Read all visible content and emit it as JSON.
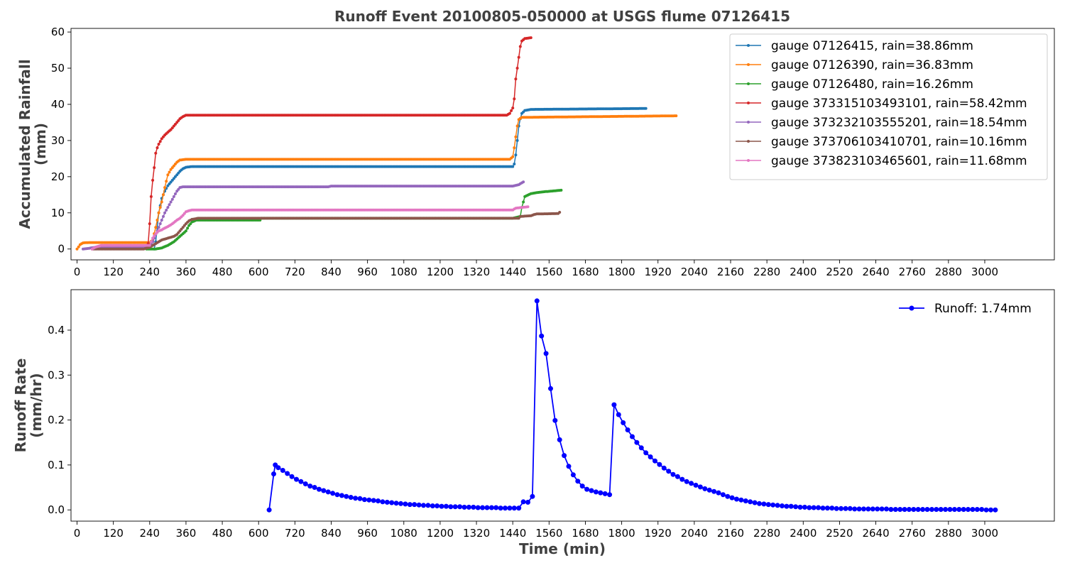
{
  "chart_data": [
    {
      "type": "line",
      "title": "Runoff Event 20100805-050000 at USGS flume 07126415",
      "ylabel": [
        "Accumulated Rainfall",
        "(mm)"
      ],
      "xlabel": "",
      "xlim": [
        -20,
        3230
      ],
      "ylim": [
        -3,
        61
      ],
      "xticks": [
        0,
        120,
        240,
        360,
        480,
        600,
        720,
        840,
        960,
        1080,
        1200,
        1320,
        1440,
        1560,
        1680,
        1800,
        1920,
        2040,
        2160,
        2280,
        2400,
        2520,
        2640,
        2760,
        2880,
        3000
      ],
      "yticks": [
        0,
        10,
        20,
        30,
        40,
        50,
        60
      ],
      "legend_position": "top-right",
      "series": [
        {
          "name": "gauge 07126415, rain=38.86mm",
          "color": "#1f77b4",
          "points": [
            [
              255,
              0
            ],
            [
              260,
              2
            ],
            [
              265,
              6
            ],
            [
              270,
              10
            ],
            [
              280,
              14
            ],
            [
              290,
              16
            ],
            [
              300,
              17.5
            ],
            [
              310,
              18.5
            ],
            [
              320,
              19.5
            ],
            [
              330,
              20.5
            ],
            [
              340,
              21.5
            ],
            [
              350,
              22.2
            ],
            [
              360,
              22.6
            ],
            [
              380,
              22.8
            ],
            [
              1440,
              22.8
            ],
            [
              1445,
              23.5
            ],
            [
              1450,
              26
            ],
            [
              1455,
              30
            ],
            [
              1460,
              34
            ],
            [
              1465,
              36
            ],
            [
              1470,
              37.5
            ],
            [
              1480,
              38.3
            ],
            [
              1500,
              38.6
            ],
            [
              1880,
              38.86
            ]
          ]
        },
        {
          "name": "gauge 07126390, rain=36.83mm",
          "color": "#ff7f0e",
          "points": [
            [
              0,
              0
            ],
            [
              10,
              1.2
            ],
            [
              20,
              1.7
            ],
            [
              40,
              1.8
            ],
            [
              240,
              1.8
            ],
            [
              250,
              2.5
            ],
            [
              260,
              6
            ],
            [
              270,
              10
            ],
            [
              280,
              13
            ],
            [
              290,
              17
            ],
            [
              300,
              20.5
            ],
            [
              310,
              22
            ],
            [
              320,
              23
            ],
            [
              330,
              24
            ],
            [
              340,
              24.6
            ],
            [
              360,
              24.8
            ],
            [
              1430,
              24.8
            ],
            [
              1440,
              25.5
            ],
            [
              1445,
              28
            ],
            [
              1450,
              31
            ],
            [
              1455,
              34
            ],
            [
              1460,
              35.8
            ],
            [
              1470,
              36.4
            ],
            [
              1980,
              36.83
            ]
          ]
        },
        {
          "name": "gauge 07126480, rain=16.26mm",
          "color": "#2ca02c",
          "points": [
            [
              230,
              0
            ],
            [
              260,
              0
            ],
            [
              280,
              0.3
            ],
            [
              300,
              1
            ],
            [
              320,
              2
            ],
            [
              340,
              3.5
            ],
            [
              360,
              5
            ],
            [
              370,
              6.5
            ],
            [
              380,
              7.5
            ],
            [
              395,
              8
            ],
            [
              605,
              8
            ],
            [
              610,
              8.5
            ],
            [
              1440,
              8.5
            ],
            [
              1465,
              9
            ],
            [
              1470,
              11.5
            ],
            [
              1480,
              14.5
            ],
            [
              1500,
              15.3
            ],
            [
              1520,
              15.6
            ],
            [
              1540,
              15.8
            ],
            [
              1600,
              16.26
            ]
          ]
        },
        {
          "name": "gauge 373315103493101, rain=58.42mm",
          "color": "#d62728",
          "points": [
            [
              235,
              1.5
            ],
            [
              240,
              7
            ],
            [
              245,
              14.5
            ],
            [
              250,
              19
            ],
            [
              255,
              22.5
            ],
            [
              260,
              26.5
            ],
            [
              265,
              28
            ],
            [
              270,
              29
            ],
            [
              280,
              30.5
            ],
            [
              290,
              31.5
            ],
            [
              300,
              32.3
            ],
            [
              310,
              33
            ],
            [
              320,
              34
            ],
            [
              330,
              35
            ],
            [
              340,
              36
            ],
            [
              350,
              36.6
            ],
            [
              360,
              37
            ],
            [
              1270,
              37
            ],
            [
              1420,
              37
            ],
            [
              1430,
              37.5
            ],
            [
              1440,
              39
            ],
            [
              1445,
              41.5
            ],
            [
              1450,
              47
            ],
            [
              1455,
              50
            ],
            [
              1460,
              53
            ],
            [
              1465,
              56
            ],
            [
              1470,
              57.5
            ],
            [
              1480,
              58.2
            ],
            [
              1500,
              58.42
            ]
          ]
        },
        {
          "name": "gauge 373232103555201, rain=18.54mm",
          "color": "#9467bd",
          "points": [
            [
              20,
              0
            ],
            [
              40,
              0.2
            ],
            [
              60,
              0.5
            ],
            [
              240,
              0.7
            ],
            [
              250,
              2
            ],
            [
              260,
              4
            ],
            [
              270,
              6
            ],
            [
              280,
              8
            ],
            [
              290,
              10
            ],
            [
              300,
              11.5
            ],
            [
              310,
              13
            ],
            [
              320,
              14.5
            ],
            [
              330,
              16
            ],
            [
              340,
              17
            ],
            [
              350,
              17.2
            ],
            [
              830,
              17.2
            ],
            [
              840,
              17.4
            ],
            [
              1440,
              17.4
            ],
            [
              1460,
              17.8
            ],
            [
              1475,
              18.54
            ]
          ]
        },
        {
          "name": "gauge 373706103410701, rain=10.16mm",
          "color": "#8c564b",
          "points": [
            [
              50,
              0
            ],
            [
              220,
              0
            ],
            [
              240,
              0.5
            ],
            [
              260,
              1.5
            ],
            [
              280,
              2.5
            ],
            [
              300,
              3
            ],
            [
              320,
              3.5
            ],
            [
              330,
              4
            ],
            [
              340,
              5
            ],
            [
              350,
              6
            ],
            [
              360,
              7
            ],
            [
              370,
              7.8
            ],
            [
              380,
              8.2
            ],
            [
              400,
              8.5
            ],
            [
              1460,
              8.5
            ],
            [
              1465,
              9
            ],
            [
              1500,
              9.2
            ],
            [
              1510,
              9.5
            ],
            [
              1520,
              9.7
            ],
            [
              1590,
              9.8
            ],
            [
              1595,
              10.16
            ]
          ]
        },
        {
          "name": "gauge 373823103465601, rain=11.68mm",
          "color": "#e377c2",
          "points": [
            [
              50,
              0
            ],
            [
              60,
              0.5
            ],
            [
              80,
              1
            ],
            [
              240,
              1
            ],
            [
              250,
              3
            ],
            [
              260,
              4.2
            ],
            [
              270,
              5
            ],
            [
              280,
              5.3
            ],
            [
              290,
              5.8
            ],
            [
              300,
              6.2
            ],
            [
              310,
              6.7
            ],
            [
              320,
              7.3
            ],
            [
              330,
              8
            ],
            [
              340,
              8.5
            ],
            [
              350,
              9.3
            ],
            [
              360,
              10.3
            ],
            [
              370,
              10.6
            ],
            [
              380,
              10.8
            ],
            [
              1440,
              10.8
            ],
            [
              1450,
              11.3
            ],
            [
              1490,
              11.68
            ]
          ]
        }
      ]
    },
    {
      "type": "line",
      "title": "",
      "ylabel": [
        "Runoff Rate",
        "(mm/hr)"
      ],
      "xlabel": "Time (min)",
      "xlim": [
        -20,
        3230
      ],
      "ylim": [
        -0.025,
        0.49
      ],
      "xticks": [
        0,
        120,
        240,
        360,
        480,
        600,
        720,
        840,
        960,
        1080,
        1200,
        1320,
        1440,
        1560,
        1680,
        1800,
        1920,
        2040,
        2160,
        2280,
        2400,
        2520,
        2640,
        2760,
        2880,
        3000
      ],
      "yticks": [
        0.0,
        0.1,
        0.2,
        0.3,
        0.4
      ],
      "ytick_labels": [
        "0.0",
        "0.1",
        "0.2",
        "0.3",
        "0.4"
      ],
      "legend_position": "top-right",
      "series": [
        {
          "name": "Runoff: 1.74mm",
          "color": "#0000ff",
          "x": [
            635,
            650,
            655,
            665,
            680,
            695,
            710,
            725,
            740,
            755,
            770,
            785,
            800,
            815,
            830,
            845,
            860,
            875,
            890,
            905,
            920,
            935,
            950,
            965,
            980,
            995,
            1010,
            1025,
            1040,
            1055,
            1070,
            1085,
            1100,
            1115,
            1130,
            1145,
            1160,
            1175,
            1190,
            1205,
            1220,
            1235,
            1250,
            1265,
            1280,
            1295,
            1310,
            1325,
            1340,
            1355,
            1370,
            1385,
            1400,
            1415,
            1430,
            1445,
            1460,
            1475,
            1490,
            1505,
            1520,
            1535,
            1550,
            1565,
            1580,
            1595,
            1610,
            1625,
            1640,
            1655,
            1670,
            1685,
            1700,
            1715,
            1730,
            1745,
            1760,
            1775,
            1790,
            1805,
            1820,
            1835,
            1850,
            1865,
            1880,
            1895,
            1910,
            1925,
            1940,
            1955,
            1970,
            1985,
            2000,
            2015,
            2030,
            2045,
            2060,
            2075,
            2090,
            2105,
            2120,
            2135,
            2150,
            2165,
            2180,
            2195,
            2210,
            2225,
            2240,
            2255,
            2270,
            2285,
            2300,
            2315,
            2330,
            2345,
            2360,
            2375,
            2390,
            2405,
            2420,
            2435,
            2450,
            2465,
            2480,
            2495,
            2510,
            2525,
            2540,
            2555,
            2570,
            2585,
            2600,
            2615,
            2630,
            2645,
            2660,
            2675,
            2690,
            2705,
            2720,
            2735,
            2750,
            2765,
            2780,
            2795,
            2810,
            2825,
            2840,
            2855,
            2870,
            2885,
            2900,
            2915,
            2930,
            2945,
            2960,
            2975,
            2990,
            3005,
            3020,
            3035
          ],
          "y": [
            0.0,
            0.08,
            0.1,
            0.094,
            0.088,
            0.081,
            0.074,
            0.068,
            0.063,
            0.058,
            0.053,
            0.05,
            0.046,
            0.043,
            0.04,
            0.037,
            0.034,
            0.032,
            0.03,
            0.028,
            0.026,
            0.025,
            0.023,
            0.022,
            0.021,
            0.02,
            0.018,
            0.017,
            0.016,
            0.015,
            0.014,
            0.013,
            0.012,
            0.012,
            0.011,
            0.01,
            0.01,
            0.009,
            0.009,
            0.008,
            0.008,
            0.007,
            0.007,
            0.007,
            0.006,
            0.006,
            0.006,
            0.005,
            0.005,
            0.005,
            0.005,
            0.005,
            0.004,
            0.004,
            0.004,
            0.004,
            0.004,
            0.018,
            0.017,
            0.03,
            0.465,
            0.387,
            0.348,
            0.27,
            0.199,
            0.156,
            0.121,
            0.097,
            0.078,
            0.064,
            0.053,
            0.046,
            0.043,
            0.04,
            0.038,
            0.036,
            0.034,
            0.234,
            0.212,
            0.194,
            0.178,
            0.163,
            0.15,
            0.138,
            0.127,
            0.118,
            0.109,
            0.101,
            0.093,
            0.086,
            0.079,
            0.074,
            0.068,
            0.063,
            0.059,
            0.055,
            0.051,
            0.047,
            0.044,
            0.041,
            0.038,
            0.034,
            0.03,
            0.027,
            0.024,
            0.022,
            0.02,
            0.018,
            0.016,
            0.014,
            0.013,
            0.012,
            0.011,
            0.01,
            0.009,
            0.008,
            0.008,
            0.007,
            0.006,
            0.006,
            0.005,
            0.005,
            0.005,
            0.004,
            0.004,
            0.004,
            0.003,
            0.003,
            0.003,
            0.003,
            0.002,
            0.002,
            0.002,
            0.002,
            0.002,
            0.002,
            0.002,
            0.002,
            0.001,
            0.001,
            0.001,
            0.001,
            0.001,
            0.001,
            0.001,
            0.001,
            0.001,
            0.001,
            0.001,
            0.001,
            0.001,
            0.001,
            0.001,
            0.001,
            0.001,
            0.001,
            0.001,
            0.001,
            0.001,
            0.0,
            0.0,
            0.0
          ]
        }
      ]
    }
  ]
}
